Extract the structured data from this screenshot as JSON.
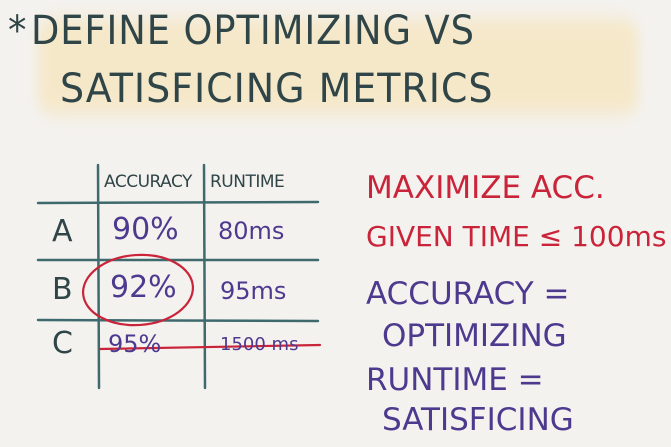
{
  "title": {
    "bullet": "*",
    "line1": "DEFINE OPTIMIZING VS",
    "line2": "SATISFICING METRICS"
  },
  "table": {
    "headers": [
      "ACCURACY",
      "RUNTIME"
    ],
    "rows": [
      {
        "label": "A",
        "accuracy": "90%",
        "runtime": "80ms"
      },
      {
        "label": "B",
        "accuracy": "92%",
        "runtime": "95ms"
      },
      {
        "label": "C",
        "accuracy": "95%",
        "runtime": "1500 ms"
      }
    ]
  },
  "notes": {
    "red_line1": "MAXIMIZE ACC.",
    "red_line2": "GIVEN TIME ≤ 100ms",
    "purple_line1": "ACCURACY =",
    "purple_line2": "OPTIMIZING",
    "purple_line3": "RUNTIME =",
    "purple_line4": "SATISFICING"
  },
  "colors": {
    "ink": "#2f4548",
    "purple": "#4d3a8f",
    "red": "#c9243a",
    "highlight": "#f7e0aa",
    "background": "#f4f2ef"
  }
}
